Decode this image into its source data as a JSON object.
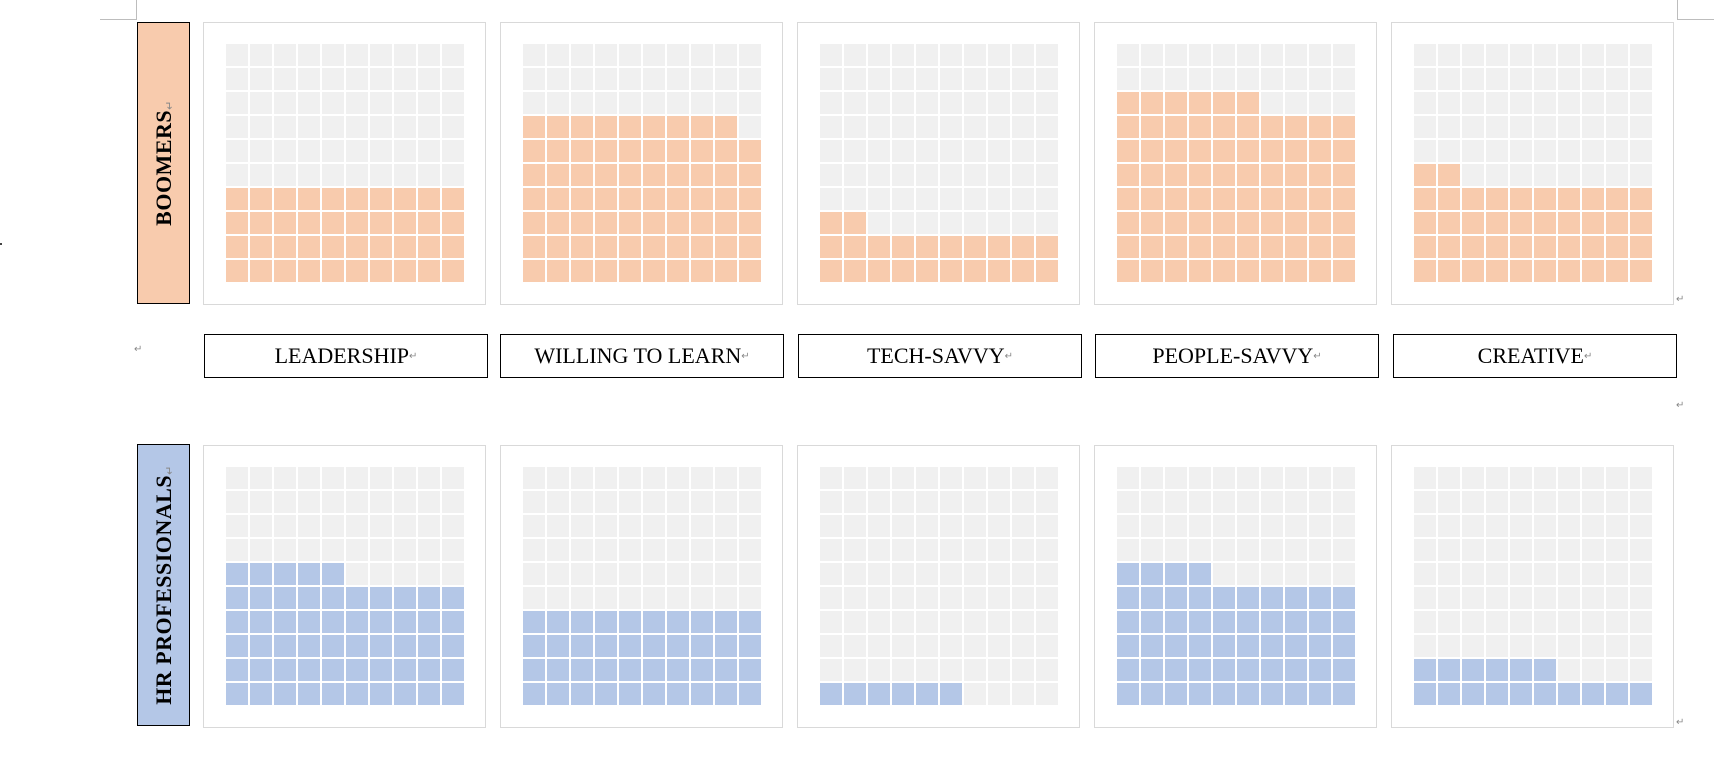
{
  "chart_data": {
    "type": "waffle",
    "grid": {
      "rows": 10,
      "columns": 10
    },
    "colors": {
      "Boomers": "#f8cbad",
      "HR Professionals": "#b4c7e7",
      "empty": "#f0f0f0"
    },
    "categories": [
      "LEADERSHIP",
      "WILLING TO LEARN",
      "TECH-SAVVY",
      "PEOPLE-SAVVY",
      "CREATIVE"
    ],
    "series": [
      {
        "name": "BOOMERS",
        "values": [
          40,
          69,
          22,
          76,
          42
        ]
      },
      {
        "name": "HR PROFESSIONALS",
        "values": [
          55,
          40,
          6,
          54,
          16
        ]
      }
    ]
  },
  "marks": {
    "paragraph": "↵"
  }
}
